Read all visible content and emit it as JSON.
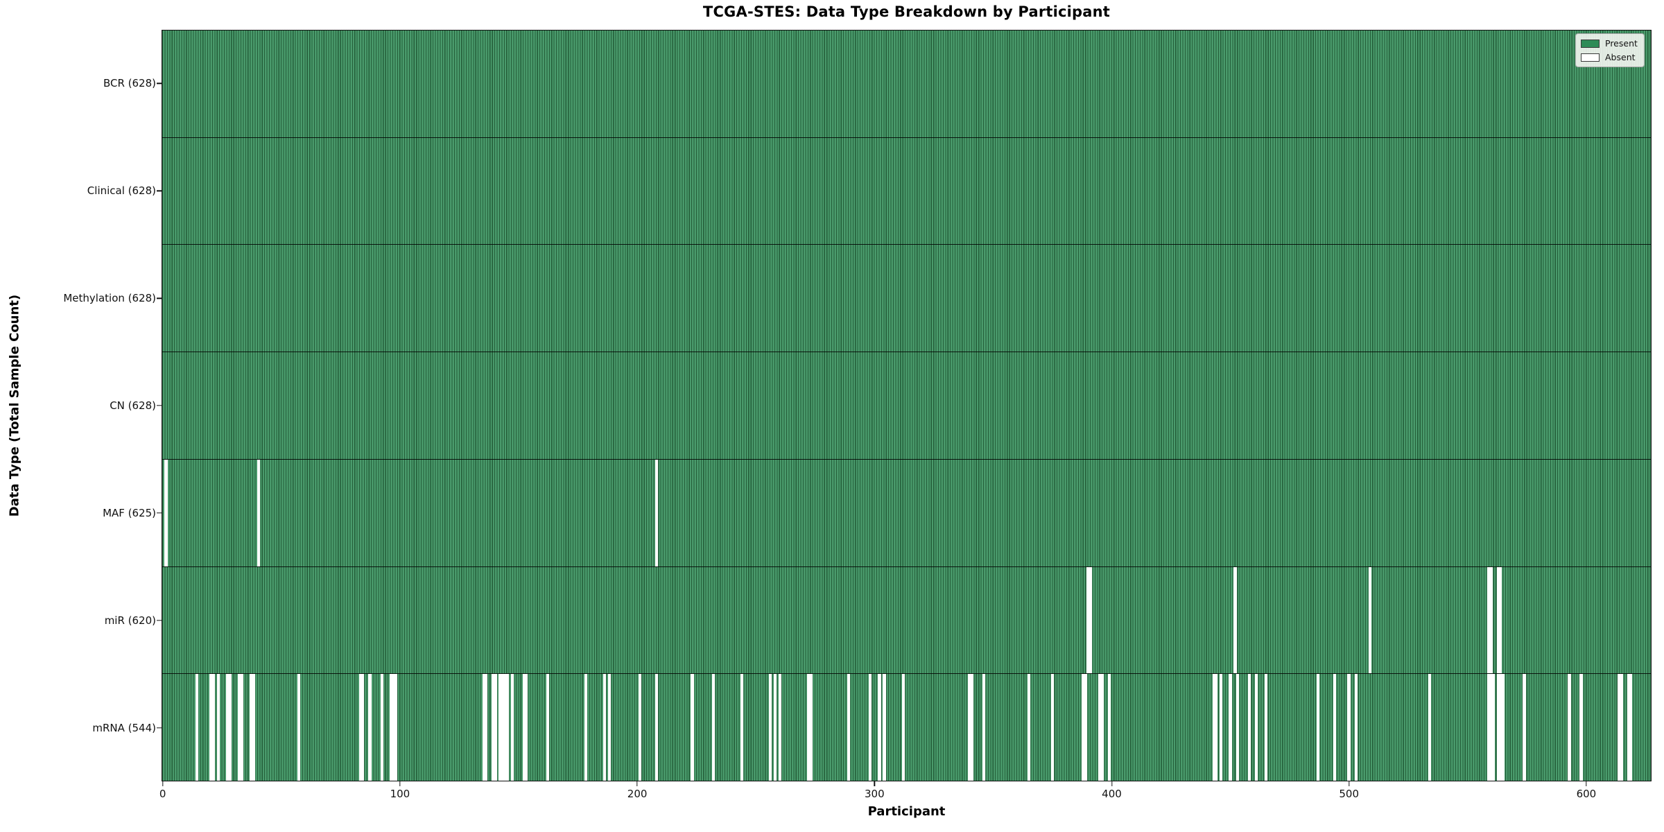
{
  "chart_data": {
    "type": "heatmap",
    "title": "TCGA-STES: Data Type Breakdown by Participant",
    "xlabel": "Participant",
    "ylabel": "Data Type (Total Sample Count)",
    "n_participants": 628,
    "x_ticks": [
      0,
      100,
      200,
      300,
      400,
      500,
      600
    ],
    "xlim": [
      -0.5,
      627.5
    ],
    "grid": false,
    "legend_position": "upper-right",
    "legend": [
      {
        "label": "Present",
        "color": "#2e8b57"
      },
      {
        "label": "Absent",
        "color": "#ffffff"
      }
    ],
    "colors": {
      "present_fill": "#4a9b6c",
      "present_edge": "#235c38",
      "absent_fill": "#ffffff",
      "axis": "#111111"
    },
    "rows": [
      {
        "name": "BCR",
        "label": "BCR (628)",
        "present_count": 628,
        "absent_participants": []
      },
      {
        "name": "Clinical",
        "label": "Clinical (628)",
        "present_count": 628,
        "absent_participants": []
      },
      {
        "name": "Methylation",
        "label": "Methylation (628)",
        "present_count": 628,
        "absent_participants": []
      },
      {
        "name": "CN",
        "label": "CN (628)",
        "present_count": 628,
        "absent_participants": []
      },
      {
        "name": "MAF",
        "label": "MAF (625)",
        "present_count": 625,
        "absent_participants": [
          1,
          40,
          208
        ]
      },
      {
        "name": "miR",
        "label": "miR (620)",
        "present_count": 620,
        "absent_participants": [
          390,
          391,
          452,
          509,
          559,
          560,
          563,
          564
        ]
      },
      {
        "name": "mRNA",
        "label": "mRNA (544)",
        "present_count": 544,
        "absent_participants": [
          14,
          20,
          21,
          23,
          27,
          28,
          32,
          33,
          37,
          38,
          57,
          83,
          84,
          87,
          92,
          96,
          97,
          98,
          135,
          136,
          139,
          140,
          142,
          143,
          144,
          145,
          147,
          152,
          153,
          162,
          178,
          186,
          188,
          201,
          208,
          223,
          232,
          244,
          256,
          258,
          260,
          272,
          273,
          289,
          298,
          302,
          304,
          312,
          340,
          341,
          346,
          365,
          375,
          388,
          389,
          395,
          396,
          399,
          443,
          444,
          446,
          450,
          453,
          458,
          461,
          465,
          487,
          494,
          500,
          503,
          534,
          559,
          560,
          561,
          563,
          564,
          565,
          574,
          593,
          598,
          614,
          615,
          618,
          619
        ]
      }
    ]
  }
}
